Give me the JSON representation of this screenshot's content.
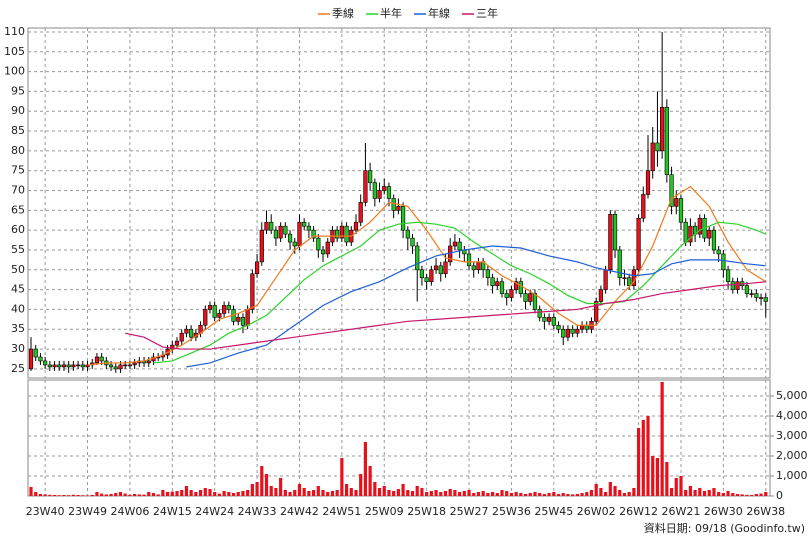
{
  "chart_data": {
    "type": "candlestick",
    "categories": [
      null,
      null,
      null,
      "23W40",
      null,
      null,
      null,
      null,
      null,
      null,
      null,
      null,
      "23W49",
      null,
      null,
      null,
      null,
      null,
      null,
      null,
      null,
      "24W06",
      null,
      null,
      null,
      null,
      null,
      null,
      null,
      null,
      "24W15",
      null,
      null,
      null,
      null,
      null,
      null,
      null,
      null,
      "24W24",
      null,
      null,
      null,
      null,
      null,
      null,
      null,
      null,
      "24W33",
      null,
      null,
      null,
      null,
      null,
      null,
      null,
      null,
      "24W42",
      null,
      null,
      null,
      null,
      null,
      null,
      null,
      null,
      "24W51",
      null,
      null,
      null,
      null,
      null,
      null,
      null,
      null,
      "25W09",
      null,
      null,
      null,
      null,
      null,
      null,
      null,
      null,
      "25W18",
      null,
      null,
      null,
      null,
      null,
      null,
      null,
      null,
      "25W27",
      null,
      null,
      null,
      null,
      null,
      null,
      null,
      null,
      "25W36",
      null,
      null,
      null,
      null,
      null,
      null,
      null,
      null,
      "25W45",
      null,
      null,
      null,
      null,
      null,
      null,
      null,
      null,
      "26W02",
      null,
      null,
      null,
      null,
      null,
      null,
      null,
      null,
      "26W12",
      null,
      null,
      null,
      null,
      null,
      null,
      null,
      null,
      "26W21",
      null,
      null,
      null,
      null,
      null,
      null,
      null,
      null,
      "26W30",
      null,
      null,
      null,
      null,
      null,
      null,
      null,
      null,
      "26W38"
    ],
    "open": [
      25,
      30,
      28,
      27,
      26,
      25.5,
      26,
      25.5,
      26,
      25.5,
      26,
      26,
      25.5,
      26,
      26.5,
      28,
      27,
      26,
      25.5,
      25,
      26,
      26,
      26,
      26.5,
      27,
      26.5,
      27,
      28,
      28,
      28.5,
      30,
      31,
      32,
      34,
      35,
      33,
      34,
      36,
      40,
      41,
      38,
      39,
      41,
      40,
      37,
      38,
      36,
      40,
      49,
      52,
      60,
      62,
      60,
      58,
      61,
      59,
      57,
      56,
      62,
      61,
      60,
      58,
      55,
      54,
      57,
      60,
      58,
      61,
      57,
      60,
      62,
      67,
      75,
      72,
      68,
      70,
      71,
      68,
      65,
      66,
      60,
      58,
      56,
      50,
      48,
      47,
      50,
      51,
      49,
      52,
      56,
      57,
      55,
      54,
      51,
      50,
      52,
      50,
      48,
      46,
      47,
      44,
      43,
      45,
      47,
      44,
      42,
      44,
      40,
      38,
      37,
      38,
      36,
      35,
      33,
      35,
      34,
      35,
      36,
      35,
      37,
      42,
      45,
      50,
      64,
      55,
      48,
      48,
      46,
      50,
      63,
      69,
      75,
      82,
      80,
      91,
      74,
      66,
      68,
      62,
      57,
      61,
      59,
      63,
      58,
      60,
      55,
      54,
      50,
      47,
      45,
      47,
      46,
      44,
      44,
      43,
      43
    ],
    "high": [
      33,
      31,
      29,
      28,
      27,
      27,
      27,
      27,
      27,
      27,
      27,
      27,
      27,
      27.5,
      29,
      29,
      28,
      27,
      26.5,
      27,
      27,
      27,
      27.5,
      28,
      28,
      28,
      29,
      29,
      29.5,
      31,
      32,
      33,
      35,
      36,
      36,
      35,
      37,
      41,
      42,
      42,
      40,
      42,
      42,
      41,
      39,
      39,
      41,
      50,
      54,
      62,
      65,
      64,
      61,
      62,
      62,
      60,
      58,
      64,
      63,
      62,
      61,
      59,
      56,
      58,
      61,
      61,
      62,
      62,
      61,
      64,
      69,
      82,
      77,
      73,
      72,
      73,
      72,
      69,
      68,
      67,
      61,
      59,
      57,
      51,
      49,
      51,
      53,
      52,
      54,
      58,
      59,
      58,
      56,
      55,
      52,
      53,
      53,
      51,
      49,
      48,
      48,
      45,
      46,
      48,
      48,
      45,
      45,
      45,
      41,
      39,
      39,
      39,
      37,
      36,
      36,
      36,
      36,
      37,
      37,
      38,
      43,
      46,
      51,
      65,
      65,
      56,
      50,
      49,
      51,
      64,
      71,
      84,
      86,
      95,
      110,
      93,
      76,
      70,
      69,
      63,
      63,
      62,
      64,
      64,
      61,
      61,
      56,
      55,
      51,
      48,
      48,
      48,
      47,
      45,
      45,
      44,
      44
    ],
    "low": [
      24.5,
      27,
      26,
      25,
      24.5,
      24.5,
      24.5,
      24.5,
      24,
      24.5,
      25,
      24.5,
      24.5,
      25,
      26,
      26,
      25,
      24.5,
      24,
      24,
      25,
      25,
      25,
      25.5,
      25.5,
      25.5,
      26,
      27,
      27,
      27.5,
      29,
      30,
      31,
      33,
      32,
      32,
      33,
      35,
      39,
      37,
      37,
      38,
      39,
      36,
      36,
      34,
      35,
      39,
      48,
      51,
      59,
      59,
      56,
      57,
      58,
      55,
      54,
      55,
      60,
      58,
      57,
      53,
      52,
      53,
      56,
      57,
      57,
      56,
      56,
      59,
      61,
      66,
      70,
      66,
      67,
      69,
      66,
      63,
      64,
      58,
      55,
      54,
      42,
      46,
      45,
      46,
      49,
      47,
      48,
      51,
      55,
      53,
      52,
      50,
      48,
      49,
      48,
      46,
      44,
      45,
      43,
      41,
      42,
      44,
      43,
      40,
      41,
      39,
      37,
      35,
      36,
      35,
      34,
      31,
      32,
      33,
      33,
      34,
      34,
      34,
      36,
      41,
      44,
      49,
      53,
      46,
      46,
      45,
      45,
      49,
      62,
      68,
      73,
      76,
      78,
      72,
      64,
      64,
      60,
      56,
      56,
      57,
      58,
      57,
      56,
      54,
      52,
      48,
      45,
      44,
      44,
      45,
      43,
      43,
      42,
      41,
      38
    ],
    "close": [
      30,
      28,
      27,
      26,
      25.5,
      26,
      25.5,
      26,
      25.5,
      26,
      26,
      25.5,
      26,
      26.5,
      28,
      27,
      26,
      25.5,
      25,
      26,
      26,
      26,
      26.5,
      27,
      26.5,
      27,
      28,
      28,
      28.5,
      30,
      31,
      32,
      34,
      35,
      33,
      34,
      36,
      40,
      41,
      38,
      39,
      41,
      40,
      37,
      38,
      36,
      40,
      49,
      52,
      60,
      62,
      60,
      58,
      61,
      59,
      57,
      56,
      62,
      61,
      60,
      58,
      55,
      54,
      57,
      60,
      58,
      61,
      57,
      60,
      62,
      67,
      75,
      72,
      68,
      70,
      71,
      68,
      65,
      66,
      60,
      58,
      56,
      50,
      48,
      47,
      50,
      51,
      49,
      52,
      56,
      57,
      55,
      54,
      51,
      50,
      52,
      50,
      48,
      46,
      47,
      44,
      43,
      45,
      47,
      44,
      42,
      44,
      40,
      38,
      37,
      38,
      36,
      35,
      33,
      35,
      34,
      35,
      36,
      35,
      37,
      42,
      45,
      50,
      64,
      55,
      48,
      48,
      46,
      50,
      63,
      69,
      75,
      82,
      80,
      91,
      74,
      66,
      68,
      62,
      57,
      61,
      59,
      63,
      58,
      60,
      55,
      54,
      50,
      47,
      45,
      47,
      46,
      44,
      44,
      43,
      43,
      42
    ],
    "volume": [
      450,
      200,
      100,
      80,
      60,
      50,
      40,
      50,
      40,
      60,
      50,
      40,
      30,
      50,
      200,
      120,
      80,
      100,
      150,
      200,
      120,
      60,
      100,
      80,
      70,
      200,
      150,
      80,
      300,
      200,
      220,
      250,
      300,
      500,
      300,
      200,
      300,
      400,
      350,
      200,
      120,
      250,
      200,
      150,
      200,
      250,
      300,
      600,
      700,
      1500,
      1100,
      500,
      400,
      900,
      300,
      200,
      300,
      600,
      400,
      250,
      300,
      500,
      300,
      200,
      250,
      300,
      1900,
      600,
      400,
      300,
      1100,
      2700,
      1500,
      700,
      400,
      500,
      300,
      250,
      350,
      600,
      300,
      250,
      500,
      400,
      200,
      250,
      300,
      200,
      250,
      350,
      300,
      200,
      250,
      300,
      150,
      200,
      250,
      150,
      200,
      150,
      300,
      250,
      150,
      200,
      150,
      100,
      150,
      200,
      150,
      100,
      150,
      200,
      100,
      150,
      100,
      80,
      100,
      150,
      200,
      300,
      600,
      400,
      200,
      700,
      500,
      300,
      150,
      200,
      400,
      3400,
      3800,
      4000,
      2000,
      1900,
      5700,
      1700,
      400,
      900,
      1000,
      300,
      500,
      300,
      400,
      250,
      300,
      400,
      200,
      150,
      250,
      150,
      100,
      80,
      60,
      50,
      100,
      120,
      200
    ],
    "up_color": "#e8111b",
    "down_color": "#22c522",
    "volume_color": "#e8111b",
    "series": [
      {
        "name": "季線",
        "color": "#f07a1c",
        "x": [
          12,
          16,
          20,
          24,
          28,
          32,
          36,
          40,
          44,
          48,
          52,
          56,
          60,
          64,
          68,
          72,
          76,
          80,
          84,
          88,
          92,
          96,
          100,
          104,
          108,
          112,
          116,
          120,
          124,
          128,
          132,
          136,
          140,
          144,
          148,
          152,
          156
        ],
        "values": [
          26,
          26.5,
          26.5,
          27,
          28.5,
          31,
          34,
          37.5,
          39,
          41,
          48,
          55,
          58.5,
          58.5,
          58.5,
          62,
          67,
          66,
          60,
          53,
          52,
          52,
          48.5,
          46,
          43,
          39,
          36,
          36,
          42,
          47,
          56,
          68,
          71,
          66,
          57,
          50,
          47
        ]
      },
      {
        "name": "半年",
        "color": "#2bd42b",
        "x": [
          26,
          30,
          34,
          38,
          42,
          46,
          50,
          54,
          58,
          62,
          66,
          70,
          74,
          78,
          82,
          86,
          90,
          94,
          98,
          102,
          106,
          110,
          114,
          118,
          122,
          126,
          130,
          134,
          138,
          142,
          146,
          150,
          154,
          156
        ],
        "values": [
          26.5,
          27,
          29,
          31,
          34,
          36,
          38.5,
          43,
          47.5,
          51,
          53.5,
          56,
          60,
          61.5,
          62,
          61.5,
          60.5,
          57,
          54,
          51,
          49,
          46.5,
          43.5,
          41.5,
          41.5,
          42,
          46,
          51,
          56,
          60,
          62,
          61.5,
          60,
          59
        ]
      },
      {
        "name": "年線",
        "color": "#1f5fd6",
        "x": [
          33,
          38,
          44,
          50,
          56,
          62,
          68,
          74,
          80,
          86,
          92,
          98,
          104,
          110,
          116,
          120,
          124,
          128,
          132,
          136,
          140,
          146,
          152,
          156
        ],
        "values": [
          25.5,
          26.5,
          29,
          31,
          36,
          41,
          44.5,
          47,
          50.5,
          53.5,
          55,
          56,
          55.5,
          53.5,
          52,
          50.5,
          49.5,
          48.5,
          49,
          51.5,
          52.5,
          52.5,
          51.5,
          51
        ]
      },
      {
        "name": "三年",
        "color": "#c8186e",
        "x": [
          20,
          24,
          28,
          32,
          38,
          44,
          50,
          56,
          62,
          68,
          74,
          80,
          86,
          92,
          98,
          104,
          110,
          116,
          122,
          128,
          134,
          140,
          146,
          152,
          156
        ],
        "values": [
          34,
          33,
          30.5,
          30,
          30,
          31,
          32,
          33,
          34,
          35,
          36,
          37,
          37.5,
          38,
          38.5,
          39,
          39.5,
          40,
          41.5,
          42.5,
          44,
          45,
          46,
          46.5,
          47
        ]
      }
    ],
    "ylim": [
      22.7,
      111
    ],
    "yticks": [
      25,
      30,
      35,
      40,
      45,
      50,
      55,
      60,
      65,
      70,
      75,
      80,
      85,
      90,
      95,
      100,
      105,
      110
    ],
    "y2lim": [
      0,
      5800
    ],
    "y2ticks": [
      0,
      {
        "value": 1000,
        "label": "1,000"
      },
      {
        "value": 2000,
        "label": "2,000"
      },
      {
        "value": 3000,
        "label": "3,000"
      },
      {
        "value": 4000,
        "label": "4,000"
      },
      {
        "value": 5000,
        "label": "5,000"
      }
    ],
    "grid": true,
    "source": "資料日期: 09/18 (Goodinfo.tw)"
  }
}
